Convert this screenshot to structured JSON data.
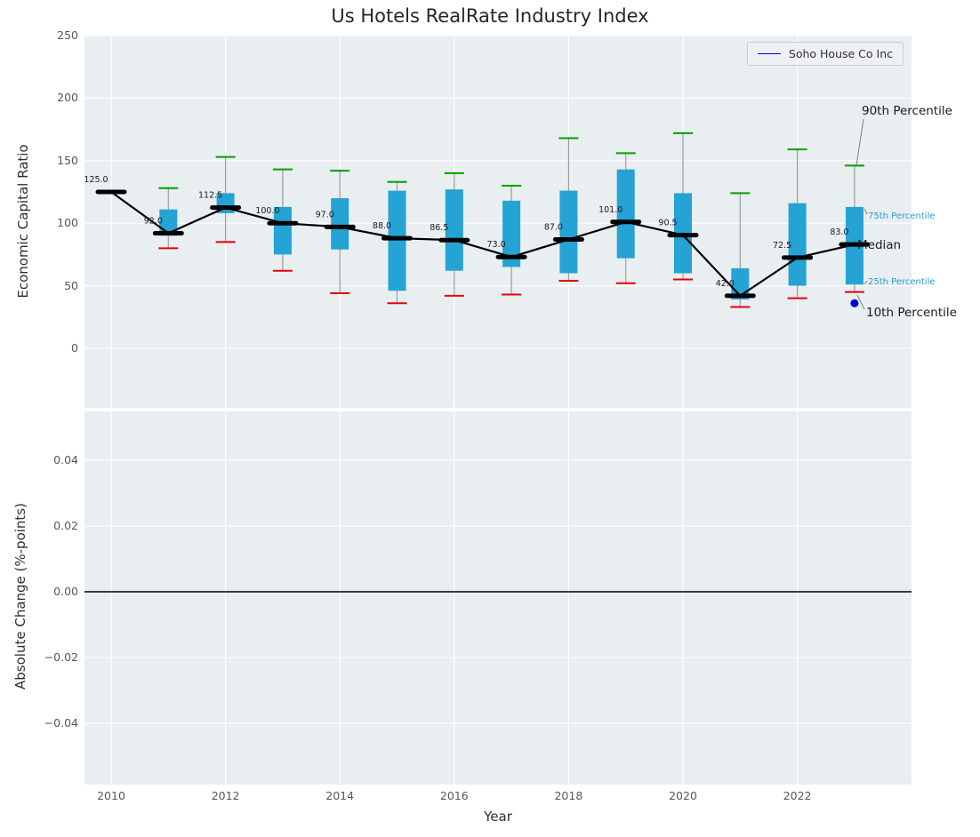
{
  "title": "Us Hotels RealRate Industry Index",
  "legend": {
    "label": "Soho House Co Inc"
  },
  "annotations": {
    "p90": "90th Percentile",
    "p75": "75th Percentile",
    "median": "Median",
    "p25": "25th Percentile",
    "p10": "10th Percentile"
  },
  "colors": {
    "box_fill": "#24a3d4",
    "p90_cap": "#00a000",
    "p10_cap": "#e8000b",
    "median_line": "#000000",
    "whisker": "#9b9b9b",
    "soho_point": "#0000dd",
    "percentile_label": "#2e9bd6",
    "axes_bg": "#e9eef1",
    "grid": "#ffffff"
  },
  "top_axis": {
    "ylabel": "Economic Capital Ratio",
    "yticks": [
      250,
      200,
      150,
      100,
      50,
      0
    ]
  },
  "bottom_axis": {
    "ylabel": "Absolute Change (%-points)",
    "xlabel": "Year",
    "yticks": [
      "0.04",
      "0.02",
      "0.00",
      "−0.02",
      "−0.04"
    ],
    "ytick_values": [
      0.04,
      0.02,
      0.0,
      -0.02,
      -0.04
    ],
    "xticks": [
      2010,
      2012,
      2014,
      2016,
      2018,
      2020,
      2022
    ]
  },
  "chart_data": {
    "type": "boxplot",
    "title": "Us Hotels RealRate Industry Index",
    "xlabel": "Year",
    "ylabel_top": "Economic Capital Ratio",
    "ylabel_bottom": "Absolute Change (%-points)",
    "ylim_top": [
      -48,
      251
    ],
    "ylim_bottom": [
      -0.055,
      0.055
    ],
    "grid": true,
    "legend_position": "upper right",
    "boxes": [
      {
        "year": 2010,
        "p10": null,
        "q1": null,
        "median": 125.0,
        "q3": null,
        "p90": null,
        "label": "125.0"
      },
      {
        "year": 2011,
        "p10": 80,
        "q1": 90,
        "median": 92.0,
        "q3": 111,
        "p90": 128,
        "label": "92.0"
      },
      {
        "year": 2012,
        "p10": 85,
        "q1": 108,
        "median": 112.5,
        "q3": 124,
        "p90": 153,
        "label": "112.5"
      },
      {
        "year": 2013,
        "p10": 62,
        "q1": 75,
        "median": 100.0,
        "q3": 113,
        "p90": 143,
        "label": "100.0"
      },
      {
        "year": 2014,
        "p10": 44,
        "q1": 79,
        "median": 97.0,
        "q3": 120,
        "p90": 142,
        "label": "97.0"
      },
      {
        "year": 2015,
        "p10": 36,
        "q1": 46,
        "median": 88.0,
        "q3": 126,
        "p90": 133,
        "label": "88.0"
      },
      {
        "year": 2016,
        "p10": 42,
        "q1": 62,
        "median": 86.5,
        "q3": 127,
        "p90": 140,
        "label": "86.5"
      },
      {
        "year": 2017,
        "p10": 43,
        "q1": 65,
        "median": 73.0,
        "q3": 118,
        "p90": 130,
        "label": "73.0"
      },
      {
        "year": 2018,
        "p10": 54,
        "q1": 60,
        "median": 87.0,
        "q3": 126,
        "p90": 168,
        "label": "87.0"
      },
      {
        "year": 2019,
        "p10": 52,
        "q1": 72,
        "median": 101.0,
        "q3": 143,
        "p90": 156,
        "label": "101.0"
      },
      {
        "year": 2020,
        "p10": 55,
        "q1": 60,
        "median": 90.5,
        "q3": 124,
        "p90": 172,
        "label": "90.5"
      },
      {
        "year": 2021,
        "p10": 33,
        "q1": 39,
        "median": 42.0,
        "q3": 64,
        "p90": 124,
        "label": "42.0"
      },
      {
        "year": 2022,
        "p10": 40,
        "q1": 50,
        "median": 72.5,
        "q3": 116,
        "p90": 159,
        "label": "72.5"
      },
      {
        "year": 2023,
        "p10": 45,
        "q1": 51,
        "median": 83.0,
        "q3": 113,
        "p90": 146,
        "label": "83.0"
      }
    ],
    "median_series": {
      "name": "Median",
      "years": [
        2010,
        2011,
        2012,
        2013,
        2014,
        2015,
        2016,
        2017,
        2018,
        2019,
        2020,
        2021,
        2022,
        2023
      ],
      "values": [
        125.0,
        92.0,
        112.5,
        100.0,
        97.0,
        88.0,
        86.5,
        73.0,
        87.0,
        101.0,
        90.5,
        42.0,
        72.5,
        83.0
      ]
    },
    "company_series": {
      "name": "Soho House Co Inc",
      "points": [
        {
          "year": 2023,
          "value": 36
        }
      ]
    },
    "bottom_panel": {
      "type": "line",
      "zero_line": 0.0,
      "series": []
    }
  }
}
